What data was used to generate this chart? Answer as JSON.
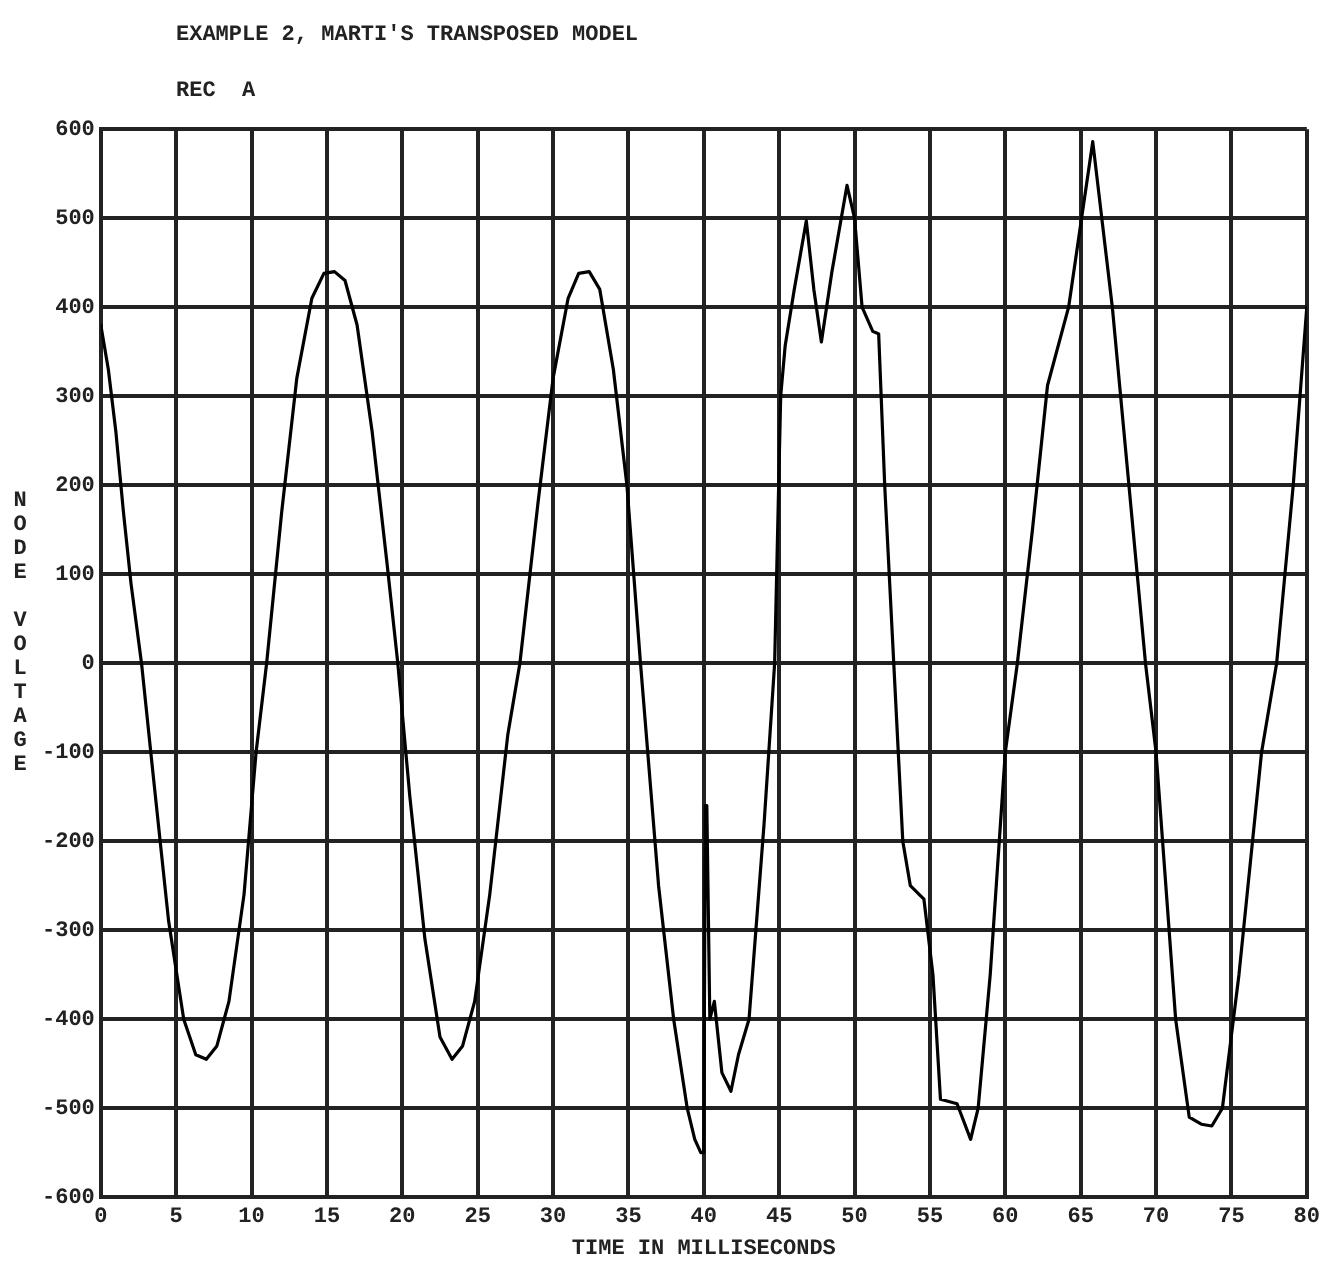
{
  "chart_data": {
    "type": "line",
    "title": "EXAMPLE 2, MARTI'S TRANSPOSED MODEL",
    "subtitle": "REC  A",
    "xlabel": "TIME IN MILLISECONDS",
    "ylabel": "NODE VOLTAGE",
    "x": [
      0,
      0.5,
      1,
      1.5,
      2,
      2.7,
      3.5,
      4.5,
      5.5,
      6.3,
      7,
      7.7,
      8.5,
      9.5,
      10.3,
      11,
      12,
      13,
      14,
      14.8,
      15.5,
      16.2,
      17,
      18,
      19,
      19.7,
      20.5,
      21.5,
      22.5,
      23.3,
      24,
      24.8,
      25.8,
      27,
      27.8,
      29,
      30,
      31,
      31.7,
      32.4,
      33.1,
      34,
      34.9,
      35.8,
      37,
      38,
      38.9,
      39.4,
      39.8,
      40,
      40.1,
      40.2,
      40.4,
      40.7,
      41.2,
      41.8,
      42.3,
      43,
      44,
      44.7,
      45.1,
      45.4,
      46,
      46.8,
      47.3,
      47.8,
      48.5,
      49.5,
      50,
      50.5,
      51.2,
      51.6,
      52,
      52.6,
      53.2,
      53.7,
      54.6,
      55.2,
      55.7,
      56.8,
      57.7,
      58.2,
      59,
      60,
      60.8,
      61.8,
      62.8,
      64.2,
      65.8,
      67.1,
      68.2,
      69.3,
      70,
      71.3,
      72.2,
      73,
      73.7,
      74.4,
      75.5,
      77,
      78,
      79.1,
      80
    ],
    "values": [
      380,
      330,
      260,
      170,
      90,
      0,
      -130,
      -290,
      -400,
      -440,
      -445,
      -430,
      -380,
      -260,
      -100,
      0,
      170,
      320,
      410,
      438,
      440,
      430,
      380,
      260,
      110,
      0,
      -150,
      -310,
      -420,
      -445,
      -430,
      -380,
      -260,
      -80,
      0,
      180,
      320,
      410,
      438,
      440,
      420,
      330,
      200,
      0,
      -250,
      -400,
      -500,
      -535,
      -550,
      -550,
      -160,
      -160,
      -400,
      -380,
      -460,
      -481,
      -440,
      -400,
      -180,
      0,
      300,
      357,
      420,
      497,
      420,
      361,
      440,
      537,
      500,
      400,
      373,
      370,
      200,
      0,
      -200,
      -250,
      -265,
      -350,
      -490,
      -495,
      -535,
      -500,
      -350,
      -100,
      0,
      150,
      312,
      400,
      586,
      400,
      200,
      0,
      -100,
      -400,
      -510,
      -518,
      -520,
      -500,
      -350,
      -100,
      0,
      200,
      400
    ],
    "color": "#000000",
    "xlim": [
      0,
      80
    ],
    "xticks": [
      0,
      5,
      10,
      15,
      20,
      25,
      30,
      35,
      40,
      45,
      50,
      55,
      60,
      65,
      70,
      75,
      80
    ],
    "ylim": [
      -600,
      600
    ],
    "yticks": [
      -600,
      -500,
      -400,
      -300,
      -200,
      -100,
      0,
      100,
      200,
      300,
      400,
      500,
      600
    ],
    "grid": true,
    "marker": "none",
    "line_style": "solid"
  }
}
